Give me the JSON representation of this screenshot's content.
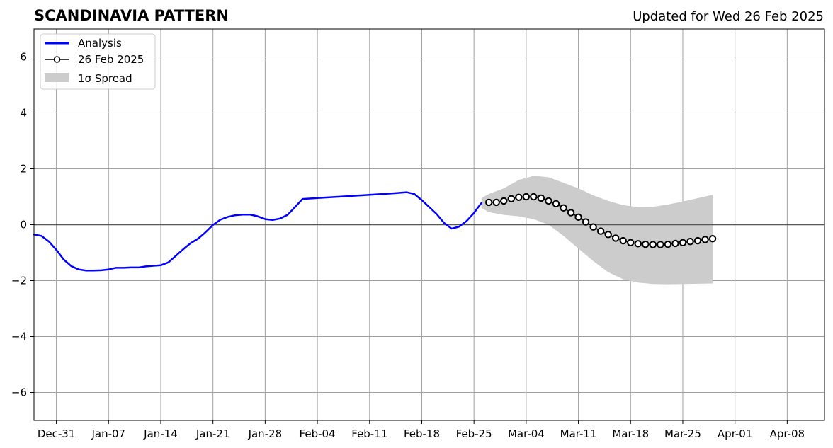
{
  "chart_data": {
    "type": "line",
    "title": "SCANDINAVIA PATTERN",
    "subtitle": "Updated for Wed 26 Feb 2025",
    "xlabel": "",
    "ylabel": "",
    "xlim": [
      "2024-12-28",
      "2025-04-13"
    ],
    "ylim": [
      -7,
      7
    ],
    "grid": true,
    "legend_position": "top-left",
    "x_ticks": [
      {
        "date": "2024-12-31",
        "label": "Dec-31"
      },
      {
        "date": "2025-01-07",
        "label": "Jan-07"
      },
      {
        "date": "2025-01-14",
        "label": "Jan-14"
      },
      {
        "date": "2025-01-21",
        "label": "Jan-21"
      },
      {
        "date": "2025-01-28",
        "label": "Jan-28"
      },
      {
        "date": "2025-02-04",
        "label": "Feb-04"
      },
      {
        "date": "2025-02-11",
        "label": "Feb-11"
      },
      {
        "date": "2025-02-18",
        "label": "Feb-18"
      },
      {
        "date": "2025-02-25",
        "label": "Feb-25"
      },
      {
        "date": "2025-03-04",
        "label": "Mar-04"
      },
      {
        "date": "2025-03-11",
        "label": "Mar-11"
      },
      {
        "date": "2025-03-18",
        "label": "Mar-18"
      },
      {
        "date": "2025-03-25",
        "label": "Mar-25"
      },
      {
        "date": "2025-04-01",
        "label": "Apr-01"
      },
      {
        "date": "2025-04-08",
        "label": "Apr-08"
      }
    ],
    "y_ticks": [
      {
        "value": -6,
        "label": "−6"
      },
      {
        "value": -4,
        "label": "−4"
      },
      {
        "value": -2,
        "label": "−2"
      },
      {
        "value": 0,
        "label": "0"
      },
      {
        "value": 2,
        "label": "2"
      },
      {
        "value": 4,
        "label": "4"
      },
      {
        "value": 6,
        "label": "6"
      }
    ],
    "series": [
      {
        "name": "Analysis",
        "style": "line",
        "color": "#0000ff",
        "x": [
          "2024-12-28",
          "2024-12-29",
          "2024-12-30",
          "2024-12-31",
          "2025-01-01",
          "2025-01-02",
          "2025-01-03",
          "2025-01-04",
          "2025-01-05",
          "2025-01-06",
          "2025-01-07",
          "2025-01-08",
          "2025-01-09",
          "2025-01-10",
          "2025-01-11",
          "2025-01-12",
          "2025-01-13",
          "2025-01-14",
          "2025-01-15",
          "2025-01-16",
          "2025-01-17",
          "2025-01-18",
          "2025-01-19",
          "2025-01-20",
          "2025-01-21",
          "2025-01-22",
          "2025-01-23",
          "2025-01-24",
          "2025-01-25",
          "2025-01-26",
          "2025-01-27",
          "2025-01-28",
          "2025-01-29",
          "2025-01-30",
          "2025-01-31",
          "2025-02-01",
          "2025-02-02",
          "2025-02-05",
          "2025-02-08",
          "2025-02-11",
          "2025-02-14",
          "2025-02-16",
          "2025-02-17",
          "2025-02-18",
          "2025-02-19",
          "2025-02-20",
          "2025-02-21",
          "2025-02-22",
          "2025-02-23",
          "2025-02-24",
          "2025-02-25",
          "2025-02-26"
        ],
        "values": [
          -0.35,
          -0.4,
          -0.6,
          -0.9,
          -1.25,
          -1.48,
          -1.6,
          -1.64,
          -1.64,
          -1.63,
          -1.6,
          -1.54,
          -1.54,
          -1.53,
          -1.53,
          -1.49,
          -1.47,
          -1.45,
          -1.35,
          -1.12,
          -0.88,
          -0.66,
          -0.5,
          -0.27,
          -0.01,
          0.18,
          0.28,
          0.34,
          0.36,
          0.36,
          0.3,
          0.2,
          0.17,
          0.22,
          0.35,
          0.63,
          0.92,
          0.97,
          1.02,
          1.07,
          1.12,
          1.16,
          1.1,
          0.88,
          0.63,
          0.38,
          0.06,
          -0.14,
          -0.07,
          0.13,
          0.42,
          0.78
        ]
      },
      {
        "name": "26 Feb 2025",
        "style": "line-marker",
        "color": "#000000",
        "marker_fill": "#ffffff",
        "x": [
          "2025-02-27",
          "2025-02-28",
          "2025-03-01",
          "2025-03-02",
          "2025-03-03",
          "2025-03-04",
          "2025-03-05",
          "2025-03-06",
          "2025-03-07",
          "2025-03-08",
          "2025-03-09",
          "2025-03-10",
          "2025-03-11",
          "2025-03-12",
          "2025-03-13",
          "2025-03-14",
          "2025-03-15",
          "2025-03-16",
          "2025-03-17",
          "2025-03-18",
          "2025-03-19",
          "2025-03-20",
          "2025-03-21",
          "2025-03-22",
          "2025-03-23",
          "2025-03-24",
          "2025-03-25",
          "2025-03-26",
          "2025-03-27",
          "2025-03-28",
          "2025-03-29"
        ],
        "values": [
          0.8,
          0.8,
          0.85,
          0.93,
          0.98,
          1.0,
          1.0,
          0.95,
          0.85,
          0.75,
          0.6,
          0.43,
          0.27,
          0.1,
          -0.08,
          -0.23,
          -0.35,
          -0.48,
          -0.57,
          -0.64,
          -0.68,
          -0.7,
          -0.71,
          -0.71,
          -0.7,
          -0.67,
          -0.64,
          -0.6,
          -0.57,
          -0.53,
          -0.5
        ]
      }
    ],
    "spread": {
      "name": "1σ Spread",
      "color": "#cccccc",
      "x": [
        "2025-02-26",
        "2025-02-27",
        "2025-03-01",
        "2025-03-03",
        "2025-03-05",
        "2025-03-07",
        "2025-03-09",
        "2025-03-11",
        "2025-03-13",
        "2025-03-15",
        "2025-03-17",
        "2025-03-19",
        "2025-03-21",
        "2025-03-23",
        "2025-03-25",
        "2025-03-27",
        "2025-03-29"
      ],
      "upper": [
        0.95,
        1.1,
        1.3,
        1.6,
        1.75,
        1.7,
        1.5,
        1.3,
        1.05,
        0.85,
        0.7,
        0.63,
        0.64,
        0.72,
        0.83,
        0.95,
        1.07
      ],
      "lower": [
        0.6,
        0.45,
        0.35,
        0.3,
        0.2,
        0.0,
        -0.4,
        -0.85,
        -1.3,
        -1.7,
        -1.95,
        -2.07,
        -2.12,
        -2.13,
        -2.12,
        -2.11,
        -2.1
      ]
    }
  }
}
